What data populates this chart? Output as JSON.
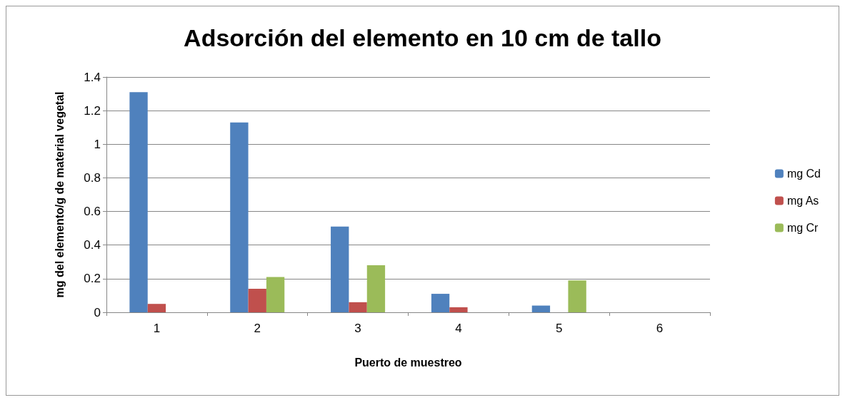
{
  "chart_data": {
    "type": "bar",
    "title": "Adsorción del elemento en 10 cm de tallo",
    "xlabel": "Puerto de muestreo",
    "ylabel": "mg del elemento/g de material vegetal",
    "categories": [
      "1",
      "2",
      "3",
      "4",
      "5",
      "6"
    ],
    "series": [
      {
        "name": "mg Cd",
        "color": "#4f81bd",
        "values": [
          1.31,
          1.13,
          0.51,
          0.11,
          0.04,
          0
        ]
      },
      {
        "name": "mg As",
        "color": "#c0504d",
        "values": [
          0.05,
          0.14,
          0.06,
          0.03,
          0,
          0
        ]
      },
      {
        "name": "mg Cr",
        "color": "#9bbb59",
        "values": [
          0,
          0.21,
          0.28,
          0,
          0.19,
          0
        ]
      }
    ],
    "ylim": [
      0,
      1.4
    ],
    "yticks": [
      0,
      0.2,
      0.4,
      0.6,
      0.8,
      1,
      1.2,
      1.4
    ],
    "grid": "y",
    "legend": "right"
  }
}
